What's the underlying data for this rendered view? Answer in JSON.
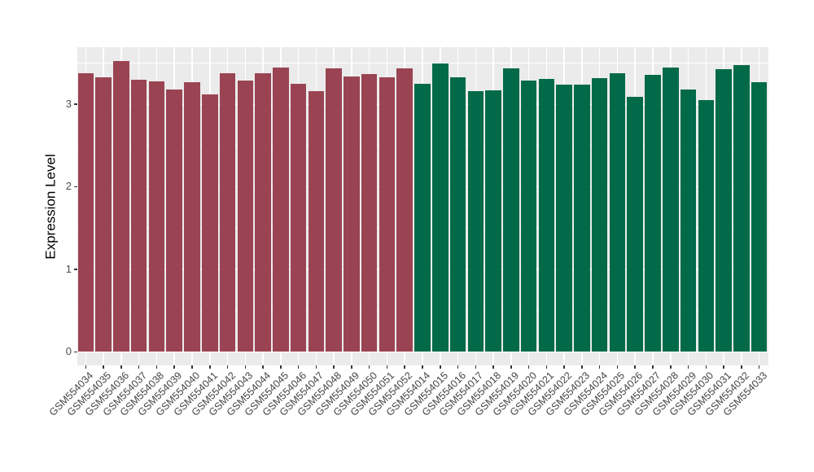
{
  "chart_data": {
    "type": "bar",
    "title": "",
    "xlabel": "",
    "ylabel": "Expression Level",
    "yticks": [
      0,
      1,
      2,
      3
    ],
    "y_minor_breaks": [
      0.5,
      1.5,
      2.5,
      3.5
    ],
    "ylim": [
      -0.18,
      3.68
    ],
    "grid": true,
    "legend_position": "none",
    "panel_background": "#EBEBEB",
    "gridline_color": "#FFFFFF",
    "tick_color": "#333333",
    "axis_text_color": "#4D4D4D",
    "series": [
      {
        "color": "#9A4453",
        "categories": [
          "GSM554034",
          "GSM554035",
          "GSM554036",
          "GSM554037",
          "GSM554038",
          "GSM554039",
          "GSM554040",
          "GSM554041",
          "GSM554042",
          "GSM554043",
          "GSM554044",
          "GSM554045",
          "GSM554046",
          "GSM554047",
          "GSM554048",
          "GSM554049",
          "GSM554050",
          "GSM554051",
          "GSM554052"
        ],
        "values": [
          3.37,
          3.32,
          3.52,
          3.29,
          3.27,
          3.18,
          3.26,
          3.12,
          3.37,
          3.28,
          3.37,
          3.44,
          3.24,
          3.16,
          3.43,
          3.33,
          3.36,
          3.32,
          3.43
        ]
      },
      {
        "color": "#026A48",
        "categories": [
          "GSM554014",
          "GSM554015",
          "GSM554016",
          "GSM554017",
          "GSM554018",
          "GSM554019",
          "GSM554020",
          "GSM554021",
          "GSM554022",
          "GSM554023",
          "GSM554024",
          "GSM554025",
          "GSM554026",
          "GSM554027",
          "GSM554028",
          "GSM554029",
          "GSM554030",
          "GSM554031",
          "GSM554032",
          "GSM554033"
        ],
        "values": [
          3.24,
          3.49,
          3.32,
          3.16,
          3.17,
          3.43,
          3.28,
          3.3,
          3.23,
          3.23,
          3.31,
          3.37,
          3.09,
          3.35,
          3.44,
          3.18,
          3.05,
          3.42,
          3.47,
          3.26
        ]
      }
    ]
  }
}
